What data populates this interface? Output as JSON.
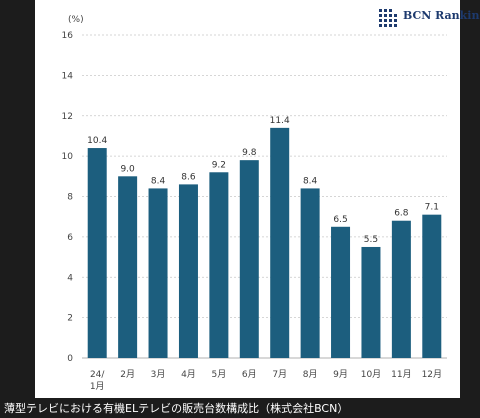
{
  "caption": "薄型テレビにおける有機ELテレビの販売台数構成比（株式会社BCN）",
  "logo_text": "BCN Ranking",
  "unit_label": "(%)",
  "colors": {
    "bar": "#1c5e7e",
    "grid": "#c8c8c8",
    "logo": "#1d3a6e"
  },
  "chart_data": {
    "type": "bar",
    "title": "",
    "xlabel": "",
    "ylabel": "(%)",
    "categories": [
      "24/\n1月",
      "2月",
      "3月",
      "4月",
      "5月",
      "6月",
      "7月",
      "8月",
      "9月",
      "10月",
      "11月",
      "12月"
    ],
    "values": [
      10.4,
      9.0,
      8.4,
      8.6,
      9.2,
      9.8,
      11.4,
      8.4,
      6.5,
      5.5,
      6.8,
      7.1
    ],
    "value_labels": [
      "10.4",
      "9.0",
      "8.4",
      "8.6",
      "9.2",
      "9.8",
      "11.4",
      "8.4",
      "6.5",
      "5.5",
      "6.8",
      "7.1"
    ],
    "yticks": [
      0,
      2,
      4,
      6,
      8,
      10,
      12,
      14,
      16
    ],
    "ylim": [
      0,
      16
    ],
    "grid": true
  }
}
